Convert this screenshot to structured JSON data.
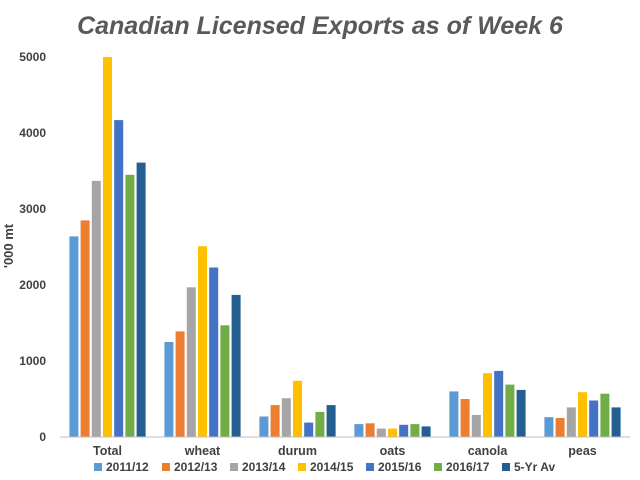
{
  "chart_data": {
    "type": "bar",
    "title": "Canadian Licensed Exports as of Week 6",
    "ylabel": "'000 mt",
    "xlabel": "",
    "ylim": [
      0,
      5000
    ],
    "yticks": [
      "0",
      "1000",
      "2000",
      "3000",
      "4000",
      "5000"
    ],
    "grid": false,
    "legend_position": "bottom",
    "categories": [
      "Total",
      "wheat",
      "durum",
      "oats",
      "canola",
      "peas"
    ],
    "series": [
      {
        "name": "2011/12",
        "color": "#5B9BD5",
        "values": [
          2640,
          1250,
          270,
          170,
          600,
          260
        ]
      },
      {
        "name": "2012/13",
        "color": "#ED7D31",
        "values": [
          2850,
          1390,
          420,
          180,
          500,
          250
        ]
      },
      {
        "name": "2013/14",
        "color": "#A5A5A5",
        "values": [
          3370,
          1970,
          510,
          110,
          290,
          390
        ]
      },
      {
        "name": "2014/15",
        "color": "#FFC000",
        "values": [
          5000,
          2510,
          740,
          110,
          840,
          590
        ]
      },
      {
        "name": "2015/16",
        "color": "#4472C4",
        "values": [
          4170,
          2230,
          190,
          160,
          870,
          480
        ]
      },
      {
        "name": "2016/17",
        "color": "#70AD47",
        "values": [
          3450,
          1470,
          330,
          170,
          690,
          570
        ]
      },
      {
        "name": "5-Yr Av",
        "color": "#255E91",
        "values": [
          3610,
          1870,
          420,
          140,
          620,
          390
        ]
      }
    ]
  }
}
